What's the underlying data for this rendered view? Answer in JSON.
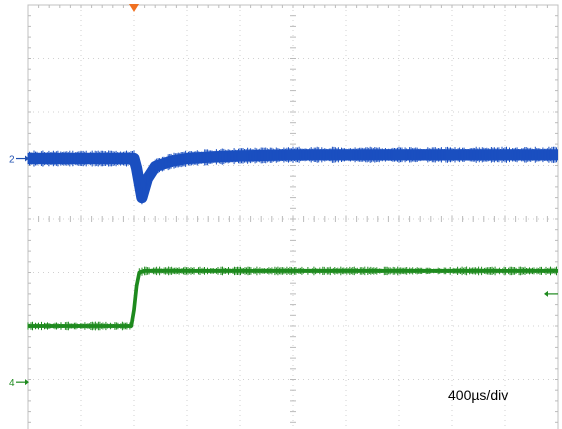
{
  "chart_data": {
    "type": "line",
    "timebase_label": "400µs/div",
    "divisions": {
      "x": 10,
      "y": 8
    },
    "grid": true,
    "trigger_marker": {
      "color": "#f07020"
    },
    "channel_markers": [
      {
        "label": "2",
        "color": "#2050b0"
      },
      {
        "label": "4",
        "color": "#1e8a1e"
      }
    ],
    "trigger_level_marker": {
      "color": "#1e8a1e"
    },
    "series": [
      {
        "channel": "2",
        "color": "#1a4fc0",
        "x": [
          0,
          2.0,
          2.05,
          2.15,
          2.25,
          2.4,
          2.7,
          3.0,
          3.5,
          4.0,
          5.0,
          6.0,
          7.0,
          8.0,
          9.0,
          10.0
        ],
        "y": [
          5.13,
          5.13,
          4.95,
          4.4,
          4.75,
          4.98,
          5.08,
          5.13,
          5.16,
          5.18,
          5.2,
          5.2,
          5.2,
          5.2,
          5.2,
          5.2
        ],
        "noise_band": 0.21
      },
      {
        "channel": "4",
        "color": "#1e8a1e",
        "x": [
          0,
          1.95,
          2.0,
          2.05,
          2.1,
          2.2,
          10.0
        ],
        "y": [
          2.0,
          2.0,
          2.3,
          2.75,
          3.0,
          3.03,
          3.03
        ],
        "noise_band": 0.07
      }
    ]
  }
}
